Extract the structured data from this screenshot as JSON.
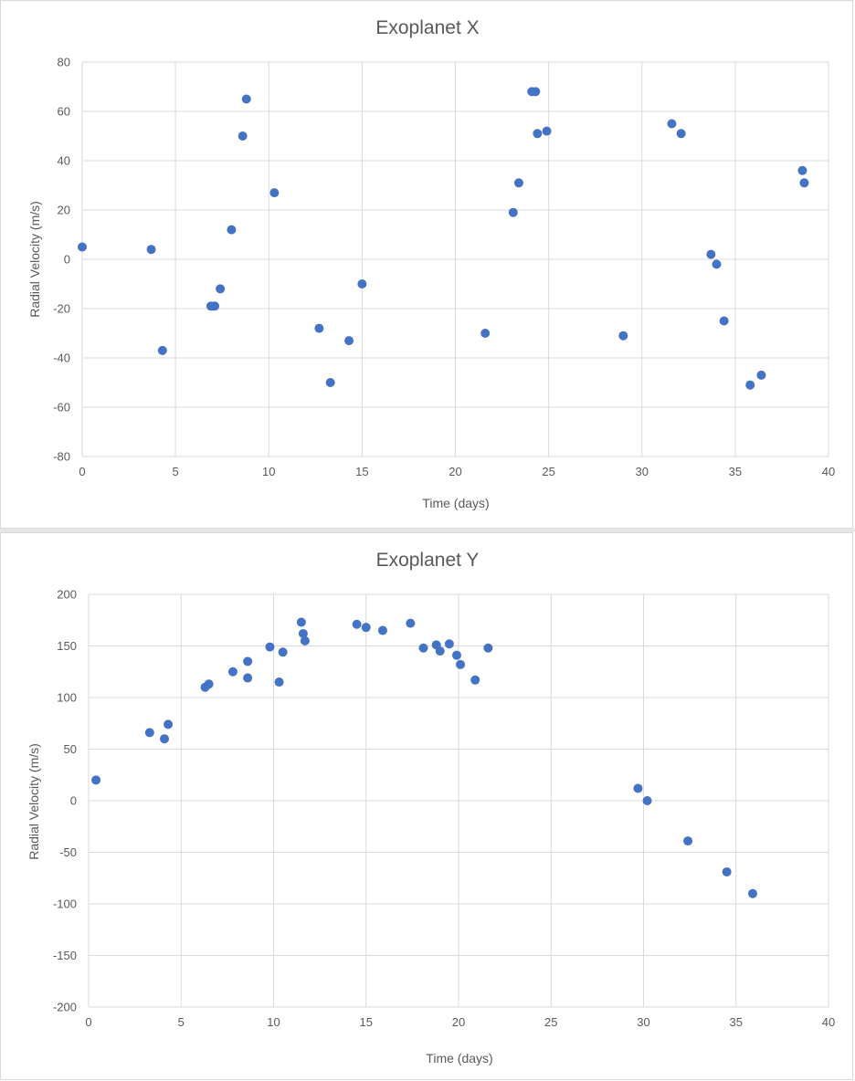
{
  "chart_data": [
    {
      "type": "scatter",
      "title": "Exoplanet X",
      "xlabel": "Time (days)",
      "ylabel": "Radial Velocity (m/s)",
      "xlim": [
        0,
        40
      ],
      "ylim": [
        -80,
        80
      ],
      "xticks": [
        0,
        5,
        10,
        15,
        20,
        25,
        30,
        35,
        40
      ],
      "yticks": [
        -80,
        -60,
        -40,
        -20,
        0,
        20,
        40,
        60,
        80
      ],
      "grid": true,
      "marker_color": "#4472c4",
      "series": [
        {
          "name": "Exoplanet X",
          "points": [
            [
              0,
              5
            ],
            [
              3.7,
              4
            ],
            [
              4.3,
              -37
            ],
            [
              6.9,
              -19
            ],
            [
              7.1,
              -19
            ],
            [
              7.4,
              -12
            ],
            [
              8,
              12
            ],
            [
              8.6,
              50
            ],
            [
              8.8,
              65
            ],
            [
              10.3,
              27
            ],
            [
              12.7,
              -28
            ],
            [
              13.3,
              -50
            ],
            [
              14.3,
              -33
            ],
            [
              15,
              -10
            ],
            [
              21.6,
              -30
            ],
            [
              23.1,
              19
            ],
            [
              23.4,
              31
            ],
            [
              24.1,
              68
            ],
            [
              24.3,
              68
            ],
            [
              24.4,
              51
            ],
            [
              24.9,
              52
            ],
            [
              29,
              -31
            ],
            [
              31.6,
              55
            ],
            [
              32.1,
              51
            ],
            [
              33.7,
              2
            ],
            [
              34,
              -2
            ],
            [
              34.4,
              -25
            ],
            [
              35.8,
              -51
            ],
            [
              36.4,
              -47
            ],
            [
              38.6,
              36
            ],
            [
              38.7,
              31
            ]
          ]
        }
      ]
    },
    {
      "type": "scatter",
      "title": "Exoplanet Y",
      "xlabel": "Time (days)",
      "ylabel": "Radial Velocity (m/s)",
      "xlim": [
        0,
        40
      ],
      "ylim": [
        -200,
        200
      ],
      "xticks": [
        0,
        5,
        10,
        15,
        20,
        25,
        30,
        35,
        40
      ],
      "yticks": [
        -200,
        -150,
        -100,
        -50,
        0,
        50,
        100,
        150,
        200
      ],
      "grid": true,
      "marker_color": "#4472c4",
      "series": [
        {
          "name": "Exoplanet Y",
          "points": [
            [
              0.4,
              20
            ],
            [
              3.3,
              66
            ],
            [
              4.1,
              60
            ],
            [
              4.3,
              74
            ],
            [
              6.3,
              110
            ],
            [
              6.5,
              113
            ],
            [
              7.8,
              125
            ],
            [
              8.6,
              135
            ],
            [
              8.6,
              119
            ],
            [
              9.8,
              149
            ],
            [
              10.3,
              115
            ],
            [
              10.5,
              144
            ],
            [
              11.5,
              173
            ],
            [
              11.6,
              162
            ],
            [
              11.7,
              155
            ],
            [
              14.5,
              171
            ],
            [
              15,
              168
            ],
            [
              15.9,
              165
            ],
            [
              17.4,
              172
            ],
            [
              18.1,
              148
            ],
            [
              18.8,
              151
            ],
            [
              19,
              145
            ],
            [
              19.5,
              152
            ],
            [
              19.9,
              141
            ],
            [
              20.1,
              132
            ],
            [
              20.9,
              117
            ],
            [
              21.6,
              148
            ],
            [
              29.7,
              12
            ],
            [
              30.2,
              0
            ],
            [
              32.4,
              -39
            ],
            [
              34.5,
              -69
            ],
            [
              35.9,
              -90
            ]
          ]
        }
      ]
    }
  ]
}
